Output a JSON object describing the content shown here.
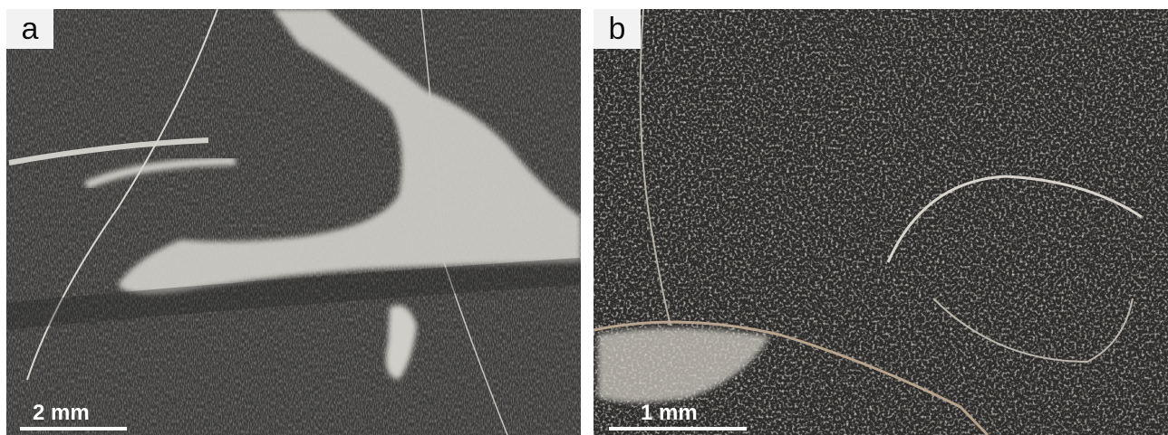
{
  "panels": [
    {
      "label": "a",
      "scale_bar": "2 mm"
    },
    {
      "label": "b",
      "scale_bar": "1 mm"
    }
  ]
}
